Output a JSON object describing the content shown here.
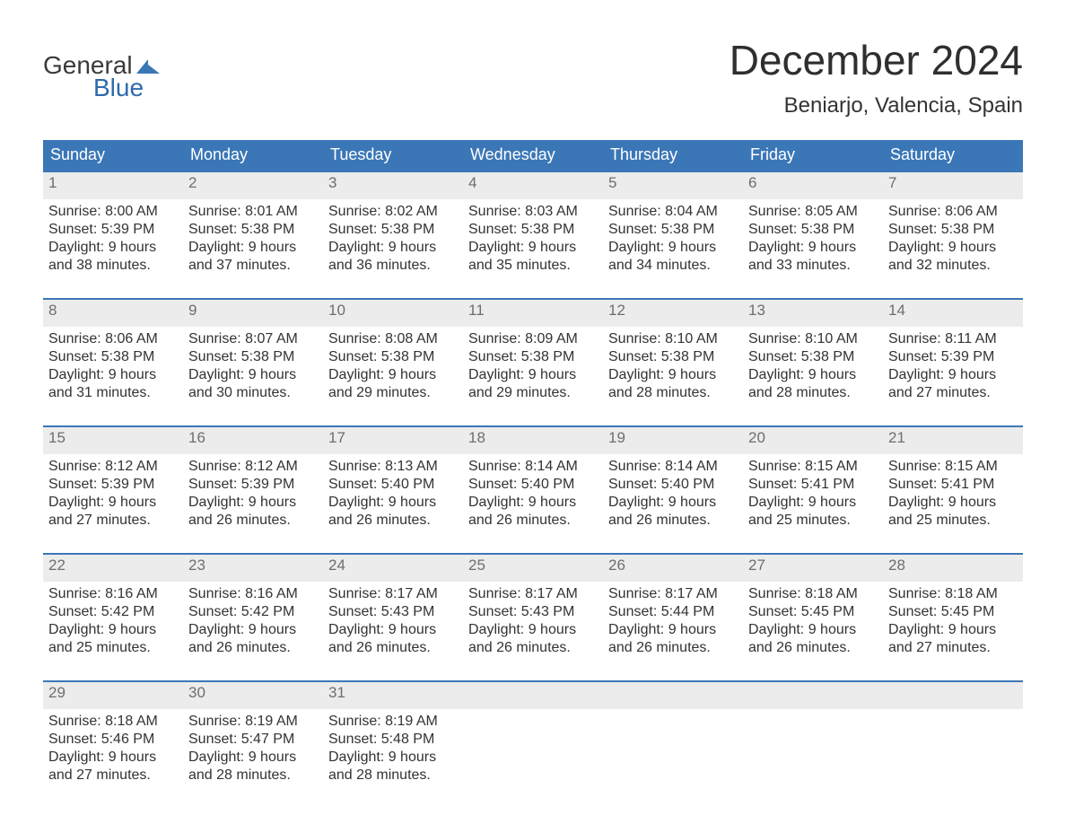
{
  "brand": {
    "word1": "General",
    "word2": "Blue",
    "accent_color": "#3b77b7"
  },
  "title": "December 2024",
  "location": "Beniarjo, Valencia, Spain",
  "weekdays": [
    "Sunday",
    "Monday",
    "Tuesday",
    "Wednesday",
    "Thursday",
    "Friday",
    "Saturday"
  ],
  "colors": {
    "header_bg": "#3b77b7",
    "header_text": "#ffffff",
    "daynum_bg": "#ececec",
    "daynum_text": "#6e6e6e",
    "body_text": "#333333",
    "week_border": "#3b77b7",
    "page_bg": "#ffffff"
  },
  "typography": {
    "title_fontsize": 46,
    "location_fontsize": 24,
    "weekday_fontsize": 18,
    "body_fontsize": 16
  },
  "weeks": [
    [
      {
        "day": "1",
        "sunrise": "Sunrise: 8:00 AM",
        "sunset": "Sunset: 5:39 PM",
        "d1": "Daylight: 9 hours",
        "d2": "and 38 minutes."
      },
      {
        "day": "2",
        "sunrise": "Sunrise: 8:01 AM",
        "sunset": "Sunset: 5:38 PM",
        "d1": "Daylight: 9 hours",
        "d2": "and 37 minutes."
      },
      {
        "day": "3",
        "sunrise": "Sunrise: 8:02 AM",
        "sunset": "Sunset: 5:38 PM",
        "d1": "Daylight: 9 hours",
        "d2": "and 36 minutes."
      },
      {
        "day": "4",
        "sunrise": "Sunrise: 8:03 AM",
        "sunset": "Sunset: 5:38 PM",
        "d1": "Daylight: 9 hours",
        "d2": "and 35 minutes."
      },
      {
        "day": "5",
        "sunrise": "Sunrise: 8:04 AM",
        "sunset": "Sunset: 5:38 PM",
        "d1": "Daylight: 9 hours",
        "d2": "and 34 minutes."
      },
      {
        "day": "6",
        "sunrise": "Sunrise: 8:05 AM",
        "sunset": "Sunset: 5:38 PM",
        "d1": "Daylight: 9 hours",
        "d2": "and 33 minutes."
      },
      {
        "day": "7",
        "sunrise": "Sunrise: 8:06 AM",
        "sunset": "Sunset: 5:38 PM",
        "d1": "Daylight: 9 hours",
        "d2": "and 32 minutes."
      }
    ],
    [
      {
        "day": "8",
        "sunrise": "Sunrise: 8:06 AM",
        "sunset": "Sunset: 5:38 PM",
        "d1": "Daylight: 9 hours",
        "d2": "and 31 minutes."
      },
      {
        "day": "9",
        "sunrise": "Sunrise: 8:07 AM",
        "sunset": "Sunset: 5:38 PM",
        "d1": "Daylight: 9 hours",
        "d2": "and 30 minutes."
      },
      {
        "day": "10",
        "sunrise": "Sunrise: 8:08 AM",
        "sunset": "Sunset: 5:38 PM",
        "d1": "Daylight: 9 hours",
        "d2": "and 29 minutes."
      },
      {
        "day": "11",
        "sunrise": "Sunrise: 8:09 AM",
        "sunset": "Sunset: 5:38 PM",
        "d1": "Daylight: 9 hours",
        "d2": "and 29 minutes."
      },
      {
        "day": "12",
        "sunrise": "Sunrise: 8:10 AM",
        "sunset": "Sunset: 5:38 PM",
        "d1": "Daylight: 9 hours",
        "d2": "and 28 minutes."
      },
      {
        "day": "13",
        "sunrise": "Sunrise: 8:10 AM",
        "sunset": "Sunset: 5:38 PM",
        "d1": "Daylight: 9 hours",
        "d2": "and 28 minutes."
      },
      {
        "day": "14",
        "sunrise": "Sunrise: 8:11 AM",
        "sunset": "Sunset: 5:39 PM",
        "d1": "Daylight: 9 hours",
        "d2": "and 27 minutes."
      }
    ],
    [
      {
        "day": "15",
        "sunrise": "Sunrise: 8:12 AM",
        "sunset": "Sunset: 5:39 PM",
        "d1": "Daylight: 9 hours",
        "d2": "and 27 minutes."
      },
      {
        "day": "16",
        "sunrise": "Sunrise: 8:12 AM",
        "sunset": "Sunset: 5:39 PM",
        "d1": "Daylight: 9 hours",
        "d2": "and 26 minutes."
      },
      {
        "day": "17",
        "sunrise": "Sunrise: 8:13 AM",
        "sunset": "Sunset: 5:40 PM",
        "d1": "Daylight: 9 hours",
        "d2": "and 26 minutes."
      },
      {
        "day": "18",
        "sunrise": "Sunrise: 8:14 AM",
        "sunset": "Sunset: 5:40 PM",
        "d1": "Daylight: 9 hours",
        "d2": "and 26 minutes."
      },
      {
        "day": "19",
        "sunrise": "Sunrise: 8:14 AM",
        "sunset": "Sunset: 5:40 PM",
        "d1": "Daylight: 9 hours",
        "d2": "and 26 minutes."
      },
      {
        "day": "20",
        "sunrise": "Sunrise: 8:15 AM",
        "sunset": "Sunset: 5:41 PM",
        "d1": "Daylight: 9 hours",
        "d2": "and 25 minutes."
      },
      {
        "day": "21",
        "sunrise": "Sunrise: 8:15 AM",
        "sunset": "Sunset: 5:41 PM",
        "d1": "Daylight: 9 hours",
        "d2": "and 25 minutes."
      }
    ],
    [
      {
        "day": "22",
        "sunrise": "Sunrise: 8:16 AM",
        "sunset": "Sunset: 5:42 PM",
        "d1": "Daylight: 9 hours",
        "d2": "and 25 minutes."
      },
      {
        "day": "23",
        "sunrise": "Sunrise: 8:16 AM",
        "sunset": "Sunset: 5:42 PM",
        "d1": "Daylight: 9 hours",
        "d2": "and 26 minutes."
      },
      {
        "day": "24",
        "sunrise": "Sunrise: 8:17 AM",
        "sunset": "Sunset: 5:43 PM",
        "d1": "Daylight: 9 hours",
        "d2": "and 26 minutes."
      },
      {
        "day": "25",
        "sunrise": "Sunrise: 8:17 AM",
        "sunset": "Sunset: 5:43 PM",
        "d1": "Daylight: 9 hours",
        "d2": "and 26 minutes."
      },
      {
        "day": "26",
        "sunrise": "Sunrise: 8:17 AM",
        "sunset": "Sunset: 5:44 PM",
        "d1": "Daylight: 9 hours",
        "d2": "and 26 minutes."
      },
      {
        "day": "27",
        "sunrise": "Sunrise: 8:18 AM",
        "sunset": "Sunset: 5:45 PM",
        "d1": "Daylight: 9 hours",
        "d2": "and 26 minutes."
      },
      {
        "day": "28",
        "sunrise": "Sunrise: 8:18 AM",
        "sunset": "Sunset: 5:45 PM",
        "d1": "Daylight: 9 hours",
        "d2": "and 27 minutes."
      }
    ],
    [
      {
        "day": "29",
        "sunrise": "Sunrise: 8:18 AM",
        "sunset": "Sunset: 5:46 PM",
        "d1": "Daylight: 9 hours",
        "d2": "and 27 minutes."
      },
      {
        "day": "30",
        "sunrise": "Sunrise: 8:19 AM",
        "sunset": "Sunset: 5:47 PM",
        "d1": "Daylight: 9 hours",
        "d2": "and 28 minutes."
      },
      {
        "day": "31",
        "sunrise": "Sunrise: 8:19 AM",
        "sunset": "Sunset: 5:48 PM",
        "d1": "Daylight: 9 hours",
        "d2": "and 28 minutes."
      },
      {
        "day": "",
        "sunrise": "",
        "sunset": "",
        "d1": "",
        "d2": ""
      },
      {
        "day": "",
        "sunrise": "",
        "sunset": "",
        "d1": "",
        "d2": ""
      },
      {
        "day": "",
        "sunrise": "",
        "sunset": "",
        "d1": "",
        "d2": ""
      },
      {
        "day": "",
        "sunrise": "",
        "sunset": "",
        "d1": "",
        "d2": ""
      }
    ]
  ]
}
